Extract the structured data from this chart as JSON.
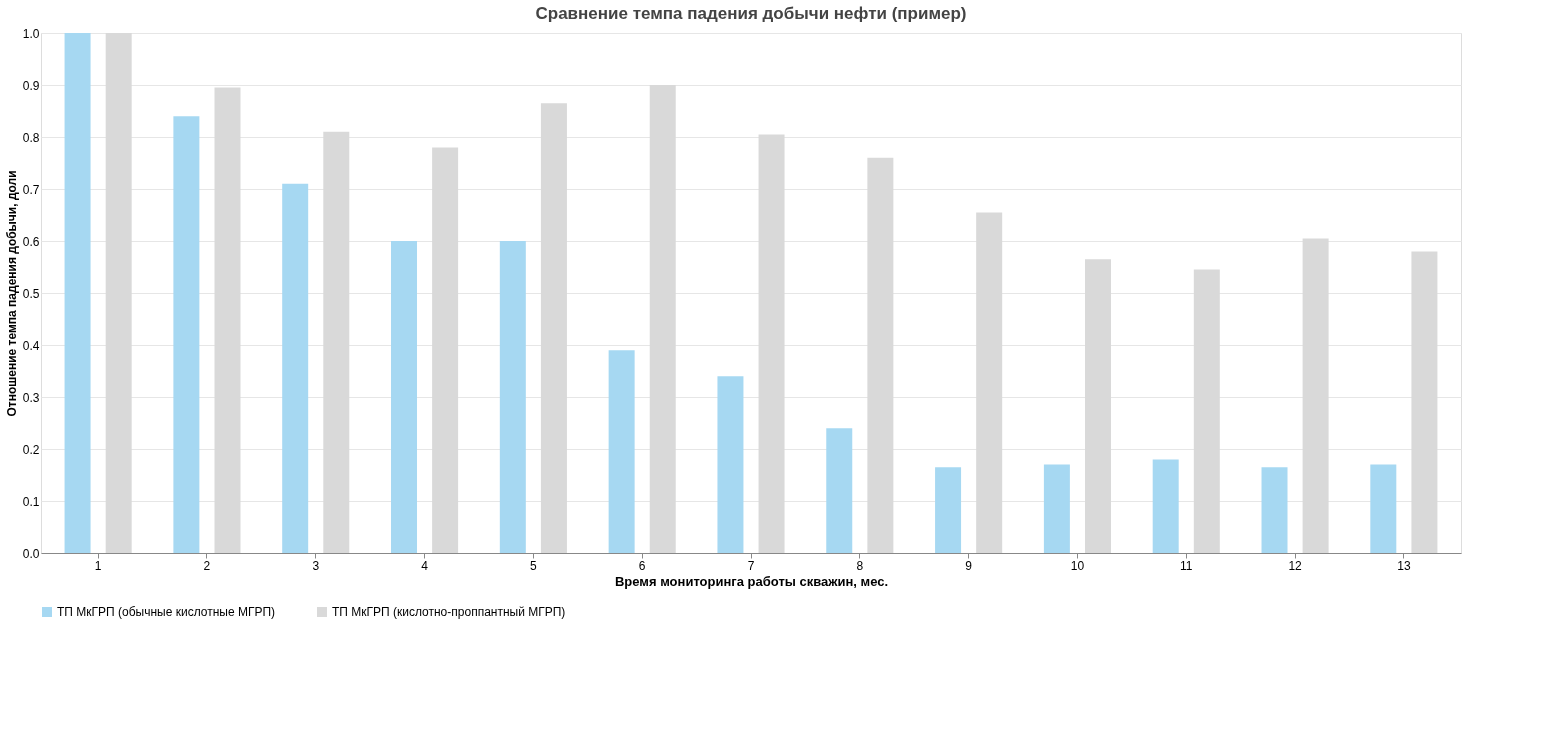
{
  "chart_data": {
    "type": "bar",
    "title": "Сравнение темпа падения добычи нефти (пример)",
    "xlabel": "Время мониторинга работы скважин, мес.",
    "ylabel": "Отношение темпа падения добычи, доли",
    "categories": [
      "1",
      "2",
      "3",
      "4",
      "5",
      "6",
      "7",
      "8",
      "9",
      "10",
      "11",
      "12",
      "13"
    ],
    "series": [
      {
        "name": "ТП МкГРП (обычные кислотные МГРП)",
        "color": "#a6d8f2",
        "values": [
          1.0,
          0.84,
          0.71,
          0.6,
          0.6,
          0.39,
          0.34,
          0.24,
          0.165,
          0.17,
          0.18,
          0.165,
          0.17
        ]
      },
      {
        "name": "ТП МкГРП (кислотно-проппантный МГРП)",
        "color": "#d9d9d9",
        "values": [
          1.0,
          0.895,
          0.81,
          0.78,
          0.865,
          0.9,
          0.805,
          0.76,
          0.655,
          0.565,
          0.545,
          0.605,
          0.58
        ]
      }
    ],
    "ylim": [
      0,
      1.0
    ],
    "yticks": [
      {
        "value": 0,
        "label": "0.0"
      },
      {
        "value": 0.1,
        "label": "0.1"
      },
      {
        "value": 0.2,
        "label": "0.2"
      },
      {
        "value": 0.3,
        "label": "0.3"
      },
      {
        "value": 0.4,
        "label": "0.4"
      },
      {
        "value": 0.5,
        "label": "0.5"
      },
      {
        "value": 0.6,
        "label": "0.6"
      },
      {
        "value": 0.7,
        "label": "0.7"
      },
      {
        "value": 0.8,
        "label": "0.8"
      },
      {
        "value": 0.9,
        "label": "0.9"
      },
      {
        "value": 1.0,
        "label": "1.0"
      }
    ],
    "grid": "y",
    "legend": "bottom"
  }
}
